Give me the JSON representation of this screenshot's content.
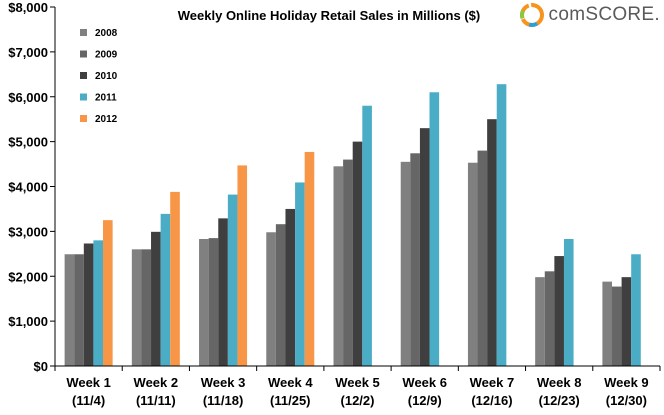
{
  "brand": {
    "name": "comSCORE."
  },
  "chart_data": {
    "type": "bar",
    "title": "Weekly Online Holiday Retail Sales in Millions ($)",
    "xlabel": "",
    "ylabel": "",
    "ylim": [
      0,
      8000
    ],
    "yticks": [
      "$0",
      "$1,000",
      "$2,000",
      "$3,000",
      "$4,000",
      "$5,000",
      "$6,000",
      "$7,000",
      "$8,000"
    ],
    "ytick_values": [
      0,
      1000,
      2000,
      3000,
      4000,
      5000,
      6000,
      7000,
      8000
    ],
    "grid": false,
    "legend_position": "top-left",
    "categories": [
      [
        "Week 1",
        "(11/4)"
      ],
      [
        "Week 2",
        "(11/11)"
      ],
      [
        "Week 3",
        "(11/18)"
      ],
      [
        "Week 4",
        "(11/25)"
      ],
      [
        "Week 5",
        "(12/2)"
      ],
      [
        "Week 6",
        "(12/9)"
      ],
      [
        "Week 7",
        "(12/16)"
      ],
      [
        "Week 8",
        "(12/23)"
      ],
      [
        "Week 9",
        "(12/30)"
      ]
    ],
    "series": [
      {
        "name": "2008",
        "color": "#808080",
        "values": [
          2490,
          2600,
          2830,
          2980,
          4450,
          4550,
          4530,
          1980,
          1880
        ]
      },
      {
        "name": "2009",
        "color": "#666666",
        "values": [
          2490,
          2600,
          2850,
          3160,
          4600,
          4740,
          4800,
          2110,
          1770
        ]
      },
      {
        "name": "2010",
        "color": "#3f3f3f",
        "values": [
          2730,
          2990,
          3290,
          3500,
          5000,
          5300,
          5500,
          2450,
          1980
        ]
      },
      {
        "name": "2011",
        "color": "#4bacc6",
        "values": [
          2800,
          3390,
          3820,
          4090,
          5800,
          6100,
          6280,
          2830,
          2490
        ]
      },
      {
        "name": "2012",
        "color": "#f79646",
        "values": [
          3250,
          3880,
          4470,
          4770,
          null,
          null,
          null,
          null,
          null
        ]
      }
    ]
  }
}
